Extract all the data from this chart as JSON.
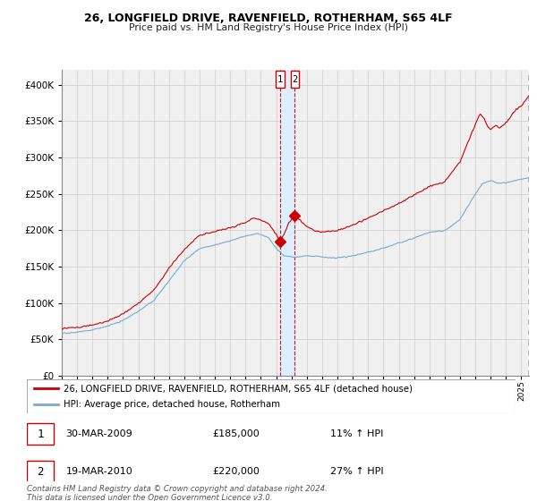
{
  "title": "26, LONGFIELD DRIVE, RAVENFIELD, ROTHERHAM, S65 4LF",
  "subtitle": "Price paid vs. HM Land Registry's House Price Index (HPI)",
  "legend_line1": "26, LONGFIELD DRIVE, RAVENFIELD, ROTHERHAM, S65 4LF (detached house)",
  "legend_line2": "HPI: Average price, detached house, Rotherham",
  "annotation1_date": "30-MAR-2009",
  "annotation1_price": "£185,000",
  "annotation1_hpi": "11% ↑ HPI",
  "annotation2_date": "19-MAR-2010",
  "annotation2_price": "£220,000",
  "annotation2_hpi": "27% ↑ HPI",
  "point1_x": 2009.25,
  "point1_y": 185000,
  "point2_x": 2010.22,
  "point2_y": 220000,
  "vline1_x": 2009.25,
  "vline2_x": 2010.22,
  "shade_x1": 2009.25,
  "shade_x2": 2010.22,
  "ylim": [
    0,
    420000
  ],
  "xlim_start": 1995,
  "xlim_end": 2025.5,
  "red_color": "#cc0000",
  "blue_color": "#7aaacc",
  "shade_color": "#ddeeff",
  "background_color": "#f0f0f0",
  "grid_color": "#cccccc",
  "footer_text": "Contains HM Land Registry data © Crown copyright and database right 2024.\nThis data is licensed under the Open Government Licence v3.0."
}
